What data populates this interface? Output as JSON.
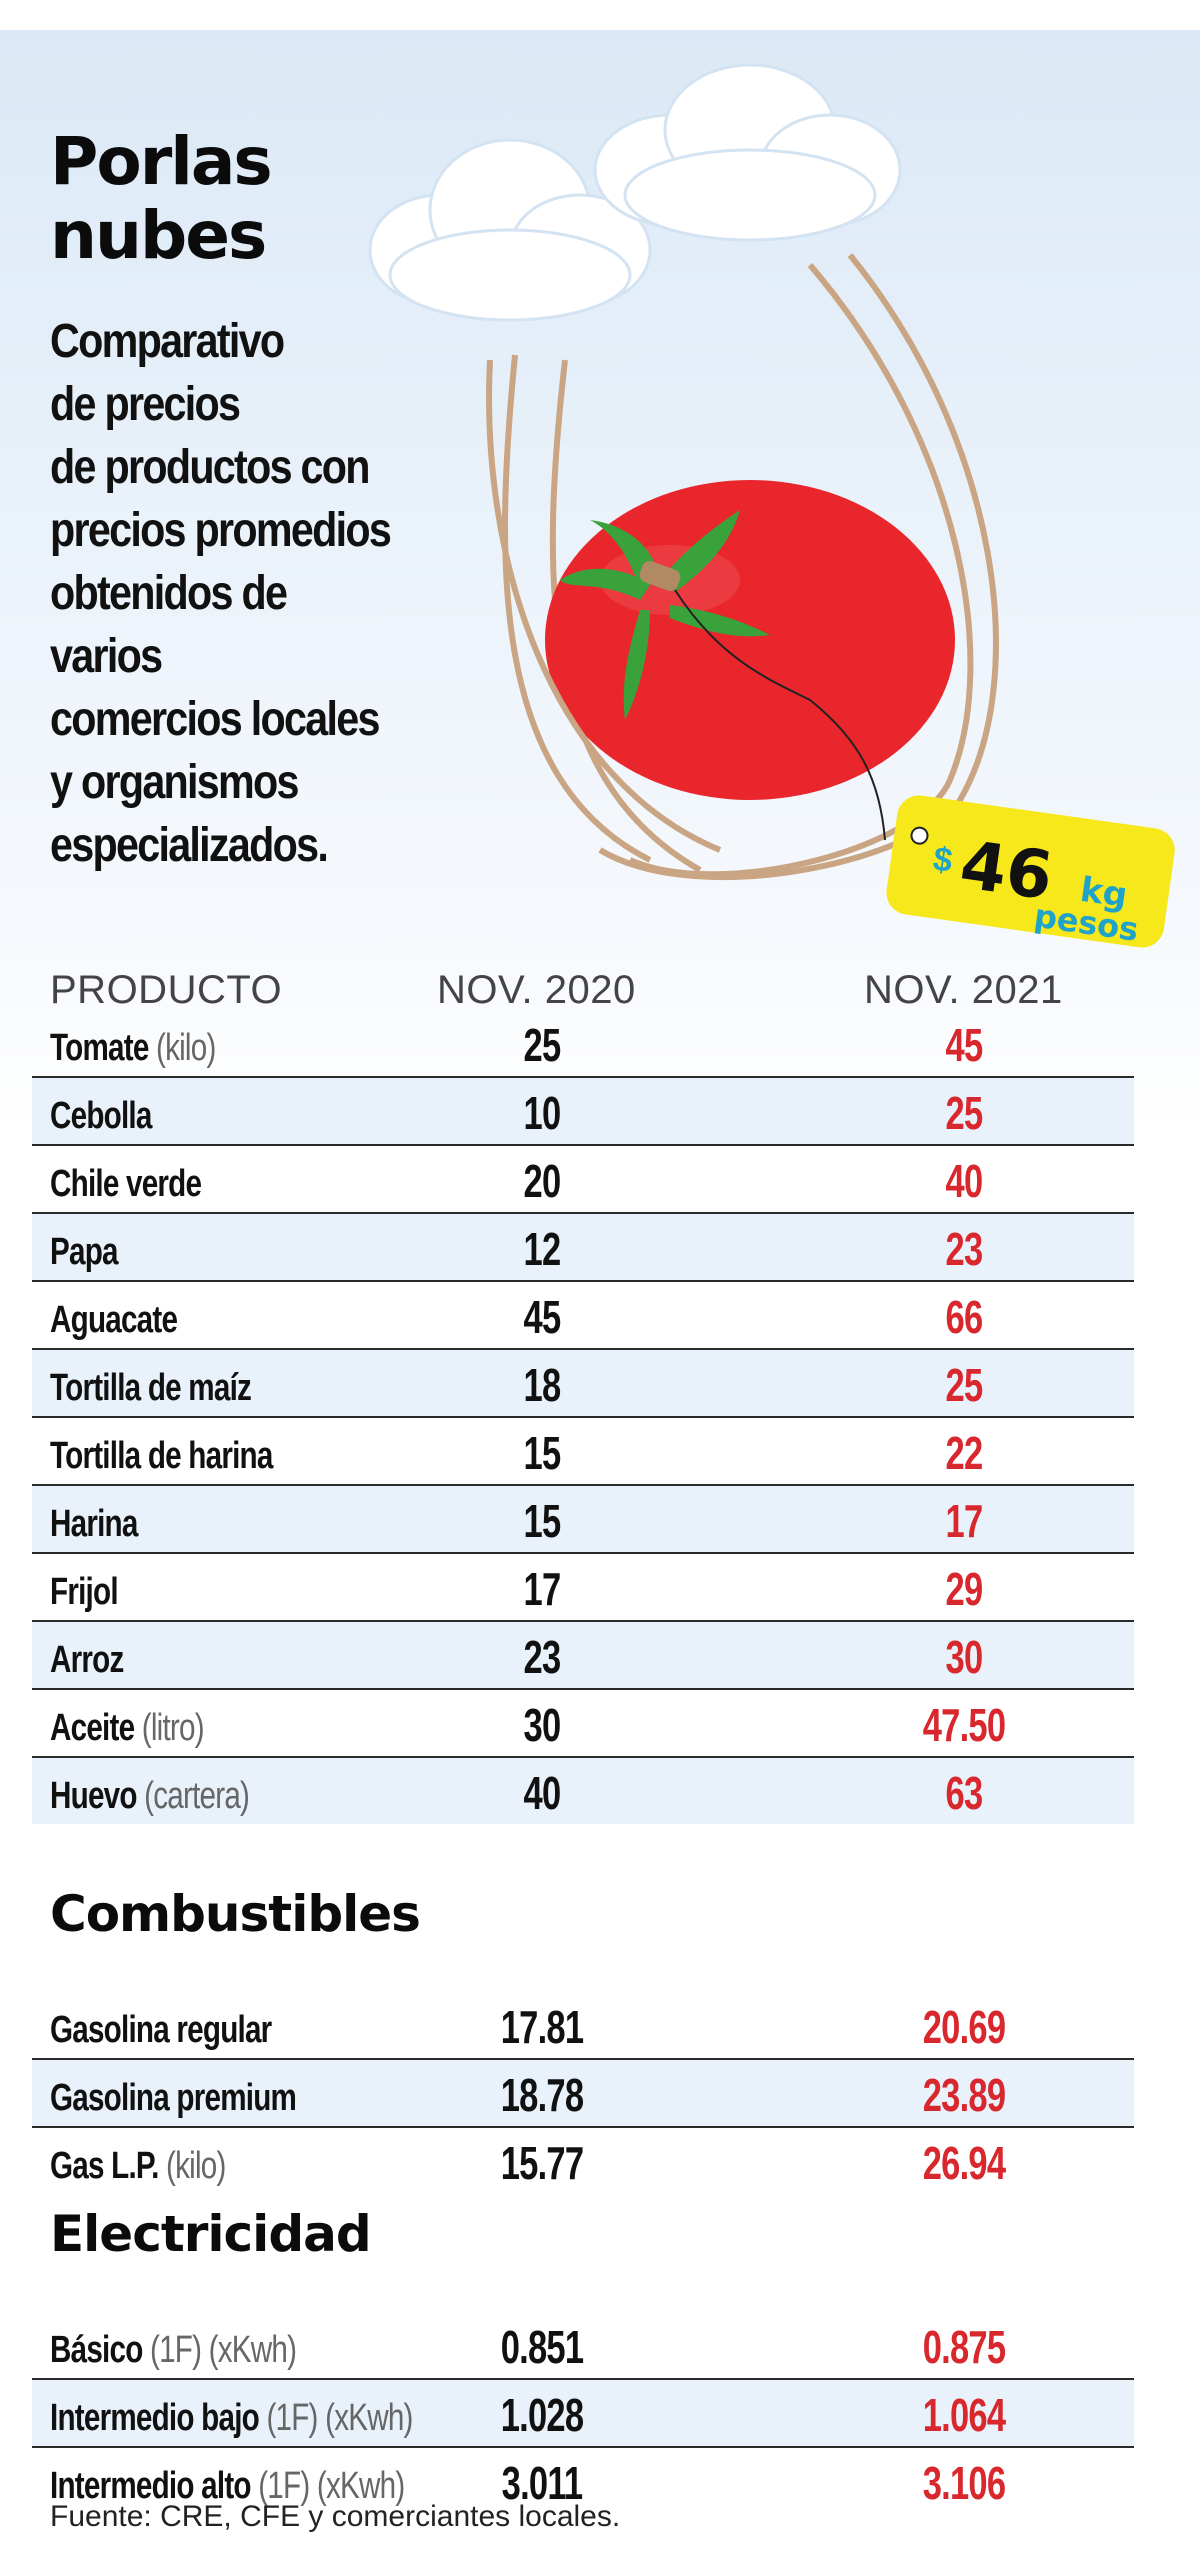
{
  "header": {
    "title_line1": "Porlas",
    "title_line2": "nubes",
    "subtitle_lines": [
      "Comparativo",
      "de precios",
      "de productos con",
      "precios promedios",
      "obtenidos de varios",
      "comercios locales",
      "y organismos",
      "especializados."
    ]
  },
  "price_tag": {
    "currency": "$",
    "amount": "46",
    "unit": "kg",
    "label": "pesos"
  },
  "table": {
    "col_product": "PRODUCTO",
    "col_2020": "NOV. 2020",
    "col_2021": "NOV. 2021"
  },
  "chart_data": {
    "type": "table",
    "columns": [
      "PRODUCTO",
      "NOV. 2020",
      "NOV. 2021"
    ],
    "sections": [
      {
        "title": "",
        "rows": [
          {
            "product": "Tomate",
            "qualifier": "(kilo)",
            "nov_2020": "25",
            "nov_2021": "45"
          },
          {
            "product": "Cebolla",
            "qualifier": "",
            "nov_2020": "10",
            "nov_2021": "25"
          },
          {
            "product": "Chile verde",
            "qualifier": "",
            "nov_2020": "20",
            "nov_2021": "40"
          },
          {
            "product": "Papa",
            "qualifier": "",
            "nov_2020": "12",
            "nov_2021": "23"
          },
          {
            "product": "Aguacate",
            "qualifier": "",
            "nov_2020": "45",
            "nov_2021": "66"
          },
          {
            "product": "Tortilla de maíz",
            "qualifier": "",
            "nov_2020": "18",
            "nov_2021": "25"
          },
          {
            "product": "Tortilla de harina",
            "qualifier": "",
            "nov_2020": "15",
            "nov_2021": "22"
          },
          {
            "product": "Harina",
            "qualifier": "",
            "nov_2020": "15",
            "nov_2021": "17"
          },
          {
            "product": "Frijol",
            "qualifier": "",
            "nov_2020": "17",
            "nov_2021": "29"
          },
          {
            "product": "Arroz",
            "qualifier": "",
            "nov_2020": "23",
            "nov_2021": "30"
          },
          {
            "product": "Aceite",
            "qualifier": "(litro)",
            "nov_2020": "30",
            "nov_2021": "47.50"
          },
          {
            "product": "Huevo",
            "qualifier": "(cartera)",
            "nov_2020": "40",
            "nov_2021": "63"
          }
        ]
      },
      {
        "title": "Combustibles",
        "rows": [
          {
            "product": "Gasolina regular",
            "qualifier": "",
            "nov_2020": "17.81",
            "nov_2021": "20.69"
          },
          {
            "product": "Gasolina premium",
            "qualifier": "",
            "nov_2020": "18.78",
            "nov_2021": "23.89"
          },
          {
            "product": "Gas L.P.",
            "qualifier": "(kilo)",
            "nov_2020": "15.77",
            "nov_2021": "26.94"
          }
        ]
      },
      {
        "title": "Electricidad",
        "rows": [
          {
            "product": "Básico",
            "qualifier": "(1F) (xKwh)",
            "nov_2020": "0.851",
            "nov_2021": "0.875"
          },
          {
            "product": "Intermedio bajo",
            "qualifier": "(1F) (xKwh)",
            "nov_2020": "1.028",
            "nov_2021": "1.064"
          },
          {
            "product": "Intermedio alto",
            "qualifier": "(1F) (xKwh)",
            "nov_2020": "3.011",
            "nov_2021": "3.106"
          }
        ]
      }
    ]
  },
  "source": "Fuente: CRE, CFE y comerciantes locales.",
  "colors": {
    "nov_2021_values": "#d8272d",
    "tomato": "#e8262b",
    "tag": "#f6e81a",
    "tag_text": "#1fa3c9",
    "row_shade": "#e9f2fb"
  }
}
